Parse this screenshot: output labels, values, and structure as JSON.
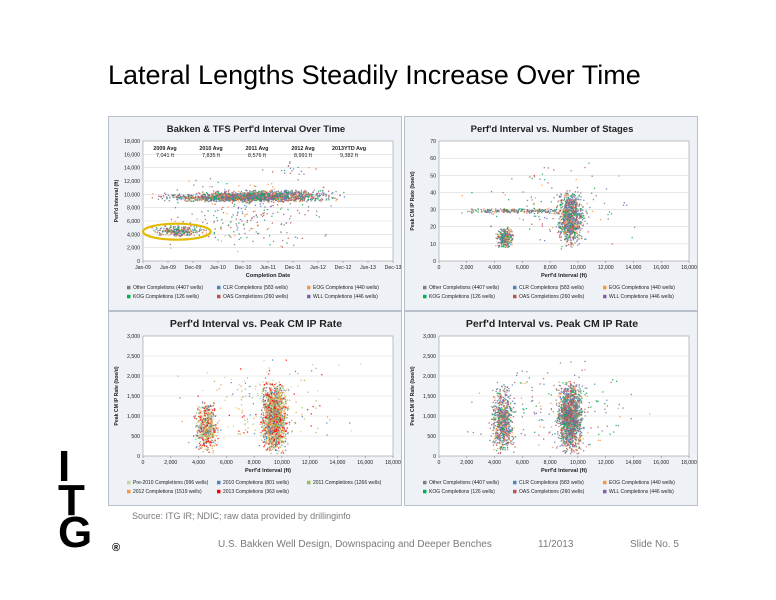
{
  "slide": {
    "title": "Lateral Lengths Steadily Increase Over Time",
    "source": "Source:  ITG IR; NDIC; raw data provided by drillinginfo",
    "footer_left": "U.S. Bakken Well Design, Downspacing and Deeper Benches",
    "footer_date": "11/2013",
    "footer_slide": "Slide No. 5"
  },
  "logo": {
    "letters": [
      "I",
      "T",
      "G"
    ],
    "mark": "®"
  },
  "colors": {
    "panel_bg": "#eef1f5",
    "plot_bg": "#ffffff",
    "grid": "#d9d9d9",
    "avg_line": "#1f3f8f",
    "highlight": "#e3b900"
  },
  "chart_data": [
    {
      "id": "tl",
      "type": "scatter",
      "title": "Bakken & TFS Perf'd Interval Over Time",
      "xlabel": "Completion Date",
      "ylabel": "Perf'd Interval (ft)",
      "xlim": [
        0,
        48
      ],
      "ylim": [
        0,
        18000
      ],
      "xticks": [
        "Jan-09",
        "Jun-09",
        "Dec-09",
        "Jun-10",
        "Dec-10",
        "Jun-11",
        "Dec-11",
        "Jun-12",
        "Dec-12",
        "Jun-13",
        "Dec-13"
      ],
      "yticks": [
        "0",
        "2,000",
        "4,000",
        "6,000",
        "8,000",
        "10,000",
        "12,000",
        "14,000",
        "16,000",
        "18,000"
      ],
      "grid": true,
      "averages": [
        {
          "label": "2009 Avg",
          "value": "7,041 ft",
          "year": 2009
        },
        {
          "label": "2010 Avg",
          "value": "7,835 ft",
          "year": 2010
        },
        {
          "label": "2011 Avg",
          "value": "8,576 ft",
          "year": 2011
        },
        {
          "label": "2012 Avg",
          "value": "8,991 ft",
          "year": 2012
        },
        {
          "label": "2013YTD Avg",
          "value": "9,382 ft",
          "year": 2013
        }
      ],
      "highlight": {
        "x": [
          0,
          13
        ],
        "y": [
          3200,
          5600
        ]
      },
      "legend": [
        {
          "name": "Other Completions (4407 wells)",
          "color": "#7f7f7f"
        },
        {
          "name": "CLR Completions (583 wells)",
          "color": "#4f81bd"
        },
        {
          "name": "EOG Completions (440 wells)",
          "color": "#f79646"
        },
        {
          "name": "KOG Completions (126 wells)",
          "color": "#00b050"
        },
        {
          "name": "OAS Completions (260 wells)",
          "color": "#c0504d"
        },
        {
          "name": "WLL Completions (446 wells)",
          "color": "#8064a2"
        }
      ],
      "clusters": [
        {
          "x": [
            0,
            40
          ],
          "y": [
            8900,
            10300
          ],
          "n": 1500
        },
        {
          "x": [
            0,
            13
          ],
          "y": [
            3700,
            5400
          ],
          "n": 260
        },
        {
          "x": [
            0,
            40
          ],
          "y": [
            1000,
            13000
          ],
          "n": 260
        },
        {
          "x": [
            8,
            40
          ],
          "y": [
            9700,
            10800
          ],
          "n": 320
        },
        {
          "x": [
            20,
            36
          ],
          "y": [
            12000,
            15500
          ],
          "n": 20
        }
      ]
    },
    {
      "id": "tr",
      "type": "scatter",
      "title": "Perf'd Interval vs. Number of Stages",
      "xlabel": "Perf'd Interval (ft)",
      "ylabel": "Peak CM IP Rate (boe/d)",
      "xlim": [
        0,
        18000
      ],
      "ylim": [
        0,
        70
      ],
      "xticks": [
        "0",
        "2,000",
        "4,000",
        "6,000",
        "8,000",
        "10,000",
        "12,000",
        "14,000",
        "16,000",
        "18,000"
      ],
      "yticks": [
        "0",
        "10",
        "20",
        "30",
        "40",
        "50",
        "60",
        "70"
      ],
      "grid": true,
      "legend": [
        {
          "name": "Other Completions (4407 wells)",
          "color": "#7f7f7f"
        },
        {
          "name": "CLR Completions (583 wells)",
          "color": "#4f81bd"
        },
        {
          "name": "EOG Completions (440 wells)",
          "color": "#f79646"
        },
        {
          "name": "KOG Completions (126 wells)",
          "color": "#00b050"
        },
        {
          "name": "OAS Completions (260 wells)",
          "color": "#c0504d"
        },
        {
          "name": "WLL Completions (446 wells)",
          "color": "#8064a2"
        }
      ],
      "clusters": [
        {
          "x": [
            3900,
            5500
          ],
          "y": [
            8,
            20
          ],
          "n": 300
        },
        {
          "x": [
            8200,
            10600
          ],
          "y": [
            8,
            42
          ],
          "n": 900
        },
        {
          "x": [
            0,
            11500
          ],
          "y": [
            28,
            31
          ],
          "n": 220
        },
        {
          "x": [
            1000,
            16000
          ],
          "y": [
            2,
            62
          ],
          "n": 110
        }
      ]
    },
    {
      "id": "bl",
      "type": "scatter",
      "title": "Perf'd Interval vs. Peak CM IP Rate",
      "xlabel": "Perf'd Interval (ft)",
      "ylabel": "Peak CM IP Rate (boe/d)",
      "xlim": [
        0,
        18000
      ],
      "ylim": [
        0,
        3000
      ],
      "xticks": [
        "0",
        "2,000",
        "4,000",
        "6,000",
        "8,000",
        "10,000",
        "12,000",
        "14,000",
        "16,000",
        "18,000"
      ],
      "yticks": [
        "0",
        "500",
        "1,000",
        "1,500",
        "2,000",
        "2,500",
        "3,000"
      ],
      "grid": true,
      "legend": [
        {
          "name": "Pre-2010 Completions (996 wells)",
          "color": "#c3d69b"
        },
        {
          "name": "2010 Completions (801 wells)",
          "color": "#4f81bd"
        },
        {
          "name": "2011 Completions (1266 wells)",
          "color": "#9bbb59"
        },
        {
          "name": "2012 Completions (1519 wells)",
          "color": "#f79646"
        },
        {
          "name": "2013 Completions (363 wells)",
          "color": "#ff0000"
        }
      ],
      "clusters": [
        {
          "x": [
            3500,
            5600
          ],
          "y": [
            50,
            1400
          ],
          "n": 600
        },
        {
          "x": [
            8200,
            10600
          ],
          "y": [
            50,
            1900
          ],
          "n": 1700
        },
        {
          "x": [
            0,
            17000
          ],
          "y": [
            100,
            2500
          ],
          "n": 180
        }
      ]
    },
    {
      "id": "br",
      "type": "scatter",
      "title": "Perf'd Interval vs. Peak CM IP Rate",
      "xlabel": "Perf'd Interval (ft)",
      "ylabel": "Peak CM IP Rate (boe/d)",
      "xlim": [
        0,
        18000
      ],
      "ylim": [
        0,
        3000
      ],
      "xticks": [
        "0",
        "2,000",
        "4,000",
        "6,000",
        "8,000",
        "10,000",
        "12,000",
        "14,000",
        "16,000",
        "18,000"
      ],
      "yticks": [
        "0",
        "500",
        "1,000",
        "1,500",
        "2,000",
        "2,500",
        "3,000"
      ],
      "grid": true,
      "legend": [
        {
          "name": "Other Completions (4407 wells)",
          "color": "#7f7f7f"
        },
        {
          "name": "CLR Completions (583 wells)",
          "color": "#4f81bd"
        },
        {
          "name": "EOG Completions (440 wells)",
          "color": "#f79646"
        },
        {
          "name": "KOG Completions (126 wells)",
          "color": "#00b050"
        },
        {
          "name": "OAS Completions (260 wells)",
          "color": "#c0504d"
        },
        {
          "name": "WLL Completions (446 wells)",
          "color": "#8064a2"
        }
      ],
      "clusters": [
        {
          "x": [
            3500,
            5600
          ],
          "y": [
            50,
            1800
          ],
          "n": 700
        },
        {
          "x": [
            8200,
            10600
          ],
          "y": [
            50,
            1900
          ],
          "n": 1500
        },
        {
          "x": [
            0,
            17000
          ],
          "y": [
            100,
            2400
          ],
          "n": 180
        }
      ]
    }
  ]
}
